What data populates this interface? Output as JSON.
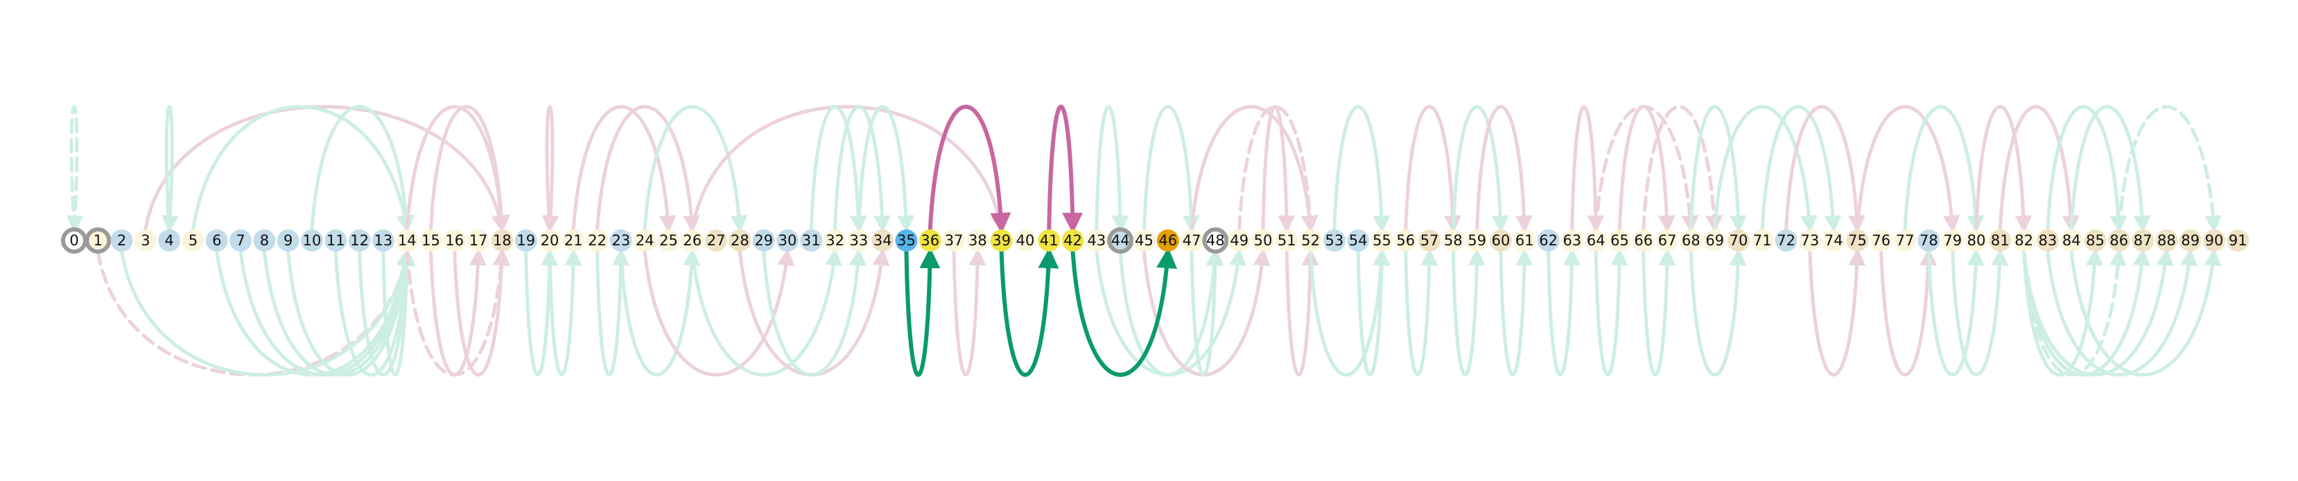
{
  "nodes": [
    {
      "label": "0",
      "style": "ring"
    },
    {
      "label": "1",
      "style": "ring-cream"
    },
    {
      "label": "2",
      "style": "blue"
    },
    {
      "label": "3",
      "style": "cream"
    },
    {
      "label": "4",
      "style": "blue"
    },
    {
      "label": "5",
      "style": "cream"
    },
    {
      "label": "6",
      "style": "blue"
    },
    {
      "label": "7",
      "style": "blue"
    },
    {
      "label": "8",
      "style": "blue"
    },
    {
      "label": "9",
      "style": "blue"
    },
    {
      "label": "10",
      "style": "blue"
    },
    {
      "label": "11",
      "style": "blue"
    },
    {
      "label": "12",
      "style": "blue"
    },
    {
      "label": "13",
      "style": "blue"
    },
    {
      "label": "14",
      "style": "cream"
    },
    {
      "label": "15",
      "style": "cream"
    },
    {
      "label": "16",
      "style": "cream"
    },
    {
      "label": "17",
      "style": "cream"
    },
    {
      "label": "18",
      "style": "tan"
    },
    {
      "label": "19",
      "style": "blue"
    },
    {
      "label": "20",
      "style": "cream"
    },
    {
      "label": "21",
      "style": "cream"
    },
    {
      "label": "22",
      "style": "cream"
    },
    {
      "label": "23",
      "style": "blue"
    },
    {
      "label": "24",
      "style": "cream"
    },
    {
      "label": "25",
      "style": "cream"
    },
    {
      "label": "26",
      "style": "cream"
    },
    {
      "label": "27",
      "style": "tan"
    },
    {
      "label": "28",
      "style": "tan"
    },
    {
      "label": "29",
      "style": "blue"
    },
    {
      "label": "30",
      "style": "blue"
    },
    {
      "label": "31",
      "style": "blue"
    },
    {
      "label": "32",
      "style": "cream"
    },
    {
      "label": "33",
      "style": "cream"
    },
    {
      "label": "34",
      "style": "tan"
    },
    {
      "label": "35",
      "style": "sky"
    },
    {
      "label": "36",
      "style": "yellow"
    },
    {
      "label": "37",
      "style": "cream"
    },
    {
      "label": "38",
      "style": "cream"
    },
    {
      "label": "39",
      "style": "yellow"
    },
    {
      "label": "40",
      "style": "cream"
    },
    {
      "label": "41",
      "style": "yellow"
    },
    {
      "label": "42",
      "style": "yellow"
    },
    {
      "label": "43",
      "style": "cream"
    },
    {
      "label": "44",
      "style": "ring-blue"
    },
    {
      "label": "45",
      "style": "cream"
    },
    {
      "label": "46",
      "style": "orange"
    },
    {
      "label": "47",
      "style": "cream"
    },
    {
      "label": "48",
      "style": "ring"
    },
    {
      "label": "49",
      "style": "cream"
    },
    {
      "label": "50",
      "style": "cream"
    },
    {
      "label": "51",
      "style": "cream"
    },
    {
      "label": "52",
      "style": "cream"
    },
    {
      "label": "53",
      "style": "blue"
    },
    {
      "label": "54",
      "style": "blue"
    },
    {
      "label": "55",
      "style": "cream"
    },
    {
      "label": "56",
      "style": "cream"
    },
    {
      "label": "57",
      "style": "tan"
    },
    {
      "label": "58",
      "style": "cream"
    },
    {
      "label": "59",
      "style": "cream"
    },
    {
      "label": "60",
      "style": "tan"
    },
    {
      "label": "61",
      "style": "cream"
    },
    {
      "label": "62",
      "style": "blue"
    },
    {
      "label": "63",
      "style": "cream"
    },
    {
      "label": "64",
      "style": "cream"
    },
    {
      "label": "65",
      "style": "cream"
    },
    {
      "label": "66",
      "style": "cream"
    },
    {
      "label": "67",
      "style": "cream"
    },
    {
      "label": "68",
      "style": "cream"
    },
    {
      "label": "69",
      "style": "cream"
    },
    {
      "label": "70",
      "style": "tan"
    },
    {
      "label": "71",
      "style": "cream"
    },
    {
      "label": "72",
      "style": "blue"
    },
    {
      "label": "73",
      "style": "cream"
    },
    {
      "label": "74",
      "style": "cream"
    },
    {
      "label": "75",
      "style": "tan"
    },
    {
      "label": "76",
      "style": "cream"
    },
    {
      "label": "77",
      "style": "cream"
    },
    {
      "label": "78",
      "style": "blue"
    },
    {
      "label": "79",
      "style": "cream"
    },
    {
      "label": "80",
      "style": "cream"
    },
    {
      "label": "81",
      "style": "tan"
    },
    {
      "label": "82",
      "style": "cream"
    },
    {
      "label": "83",
      "style": "tan"
    },
    {
      "label": "84",
      "style": "cream"
    },
    {
      "label": "85",
      "style": "tan"
    },
    {
      "label": "86",
      "style": "tan"
    },
    {
      "label": "87",
      "style": "tan"
    },
    {
      "label": "88",
      "style": "tan"
    },
    {
      "label": "89",
      "style": "tan"
    },
    {
      "label": "90",
      "style": "tan"
    },
    {
      "label": "91",
      "style": "tan"
    }
  ],
  "highlighted_edges": [
    {
      "from": 36,
      "to": 39,
      "side": "above",
      "color": "#c8679f",
      "kind": "solid"
    },
    {
      "from": 41,
      "to": 42,
      "side": "above",
      "color": "#c8679f",
      "kind": "solid"
    },
    {
      "from": 35,
      "to": 36,
      "side": "below",
      "color": "#0a9a6e",
      "kind": "solid"
    },
    {
      "from": 39,
      "to": 41,
      "side": "below",
      "color": "#0a9a6e",
      "kind": "solid"
    },
    {
      "from": 42,
      "to": 46,
      "side": "below",
      "color": "#0a9a6e",
      "kind": "solid"
    }
  ],
  "background_edges": [
    {
      "from": 0,
      "to": 0,
      "side": "above",
      "color": "#cdeee3",
      "kind": "dashed"
    },
    {
      "from": 3,
      "to": 18,
      "side": "above",
      "color": "#ecd2dd",
      "kind": "solid"
    },
    {
      "from": 4,
      "to": 4,
      "side": "above",
      "color": "#cdeee3",
      "kind": "solid"
    },
    {
      "from": 5,
      "to": 14,
      "side": "above",
      "color": "#cdeee3",
      "kind": "solid"
    },
    {
      "from": 10,
      "to": 14,
      "side": "above",
      "color": "#cdeee3",
      "kind": "solid"
    },
    {
      "from": 14,
      "to": 18,
      "side": "above",
      "color": "#ecd2dd",
      "kind": "solid"
    },
    {
      "from": 15,
      "to": 18,
      "side": "above",
      "color": "#ecd2dd",
      "kind": "solid"
    },
    {
      "from": 20,
      "to": 20,
      "side": "above",
      "color": "#ecd2dd",
      "kind": "solid"
    },
    {
      "from": 21,
      "to": 25,
      "side": "above",
      "color": "#ecd2dd",
      "kind": "solid"
    },
    {
      "from": 22,
      "to": 26,
      "side": "above",
      "color": "#ecd2dd",
      "kind": "solid"
    },
    {
      "from": 24,
      "to": 28,
      "side": "above",
      "color": "#cdeee3",
      "kind": "solid"
    },
    {
      "from": 26,
      "to": 39,
      "side": "above",
      "color": "#ecd2dd",
      "kind": "solid"
    },
    {
      "from": 31,
      "to": 33,
      "side": "above",
      "color": "#cdeee3",
      "kind": "solid"
    },
    {
      "from": 32,
      "to": 34,
      "side": "above",
      "color": "#cdeee3",
      "kind": "solid"
    },
    {
      "from": 33,
      "to": 35,
      "side": "above",
      "color": "#cdeee3",
      "kind": "solid"
    },
    {
      "from": 43,
      "to": 44,
      "side": "above",
      "color": "#cdeee3",
      "kind": "solid"
    },
    {
      "from": 45,
      "to": 47,
      "side": "above",
      "color": "#cdeee3",
      "kind": "solid"
    },
    {
      "from": 47,
      "to": 52,
      "side": "above",
      "color": "#ecd2dd",
      "kind": "solid"
    },
    {
      "from": 49,
      "to": 52,
      "side": "above",
      "color": "#ecd2dd",
      "kind": "dashed"
    },
    {
      "from": 50,
      "to": 51,
      "side": "above",
      "color": "#ecd2dd",
      "kind": "solid"
    },
    {
      "from": 53,
      "to": 55,
      "side": "above",
      "color": "#cdeee3",
      "kind": "solid"
    },
    {
      "from": 56,
      "to": 58,
      "side": "above",
      "color": "#ecd2dd",
      "kind": "solid"
    },
    {
      "from": 58,
      "to": 60,
      "side": "above",
      "color": "#cdeee3",
      "kind": "solid"
    },
    {
      "from": 59,
      "to": 61,
      "side": "above",
      "color": "#ecd2dd",
      "kind": "solid"
    },
    {
      "from": 63,
      "to": 64,
      "side": "above",
      "color": "#ecd2dd",
      "kind": "solid"
    },
    {
      "from": 64,
      "to": 68,
      "side": "above",
      "color": "#ecd2dd",
      "kind": "dashed"
    },
    {
      "from": 65,
      "to": 67,
      "side": "above",
      "color": "#ecd2dd",
      "kind": "solid"
    },
    {
      "from": 66,
      "to": 69,
      "side": "above",
      "color": "#ecd2dd",
      "kind": "dashed"
    },
    {
      "from": 68,
      "to": 70,
      "side": "above",
      "color": "#cdeee3",
      "kind": "solid"
    },
    {
      "from": 69,
      "to": 73,
      "side": "above",
      "color": "#cdeee3",
      "kind": "solid"
    },
    {
      "from": 71,
      "to": 74,
      "side": "above",
      "color": "#cdeee3",
      "kind": "solid"
    },
    {
      "from": 72,
      "to": 75,
      "side": "above",
      "color": "#ecd2dd",
      "kind": "solid"
    },
    {
      "from": 75,
      "to": 79,
      "side": "above",
      "color": "#ecd2dd",
      "kind": "solid"
    },
    {
      "from": 77,
      "to": 80,
      "side": "above",
      "color": "#cdeee3",
      "kind": "solid"
    },
    {
      "from": 80,
      "to": 82,
      "side": "above",
      "color": "#ecd2dd",
      "kind": "solid"
    },
    {
      "from": 81,
      "to": 84,
      "side": "above",
      "color": "#ecd2dd",
      "kind": "solid"
    },
    {
      "from": 83,
      "to": 86,
      "side": "above",
      "color": "#cdeee3",
      "kind": "solid"
    },
    {
      "from": 84,
      "to": 87,
      "side": "above",
      "color": "#cdeee3",
      "kind": "solid"
    },
    {
      "from": 86,
      "to": 90,
      "side": "above",
      "color": "#cdeee3",
      "kind": "dashed"
    },
    {
      "from": 1,
      "to": 14,
      "side": "below",
      "color": "#ecd2dd",
      "kind": "dashed"
    },
    {
      "from": 2,
      "to": 14,
      "side": "below",
      "color": "#cdeee3",
      "kind": "solid"
    },
    {
      "from": 6,
      "to": 14,
      "side": "below",
      "color": "#cdeee3",
      "kind": "solid"
    },
    {
      "from": 7,
      "to": 14,
      "side": "below",
      "color": "#cdeee3",
      "kind": "solid"
    },
    {
      "from": 8,
      "to": 14,
      "side": "below",
      "color": "#cdeee3",
      "kind": "solid"
    },
    {
      "from": 9,
      "to": 14,
      "side": "below",
      "color": "#cdeee3",
      "kind": "solid"
    },
    {
      "from": 11,
      "to": 14,
      "side": "below",
      "color": "#cdeee3",
      "kind": "solid"
    },
    {
      "from": 12,
      "to": 14,
      "side": "below",
      "color": "#cdeee3",
      "kind": "solid"
    },
    {
      "from": 13,
      "to": 14,
      "side": "below",
      "color": "#cdeee3",
      "kind": "solid"
    },
    {
      "from": 14,
      "to": 18,
      "side": "below",
      "color": "#ecd2dd",
      "kind": "dashed"
    },
    {
      "from": 15,
      "to": 17,
      "side": "below",
      "color": "#ecd2dd",
      "kind": "solid"
    },
    {
      "from": 16,
      "to": 18,
      "side": "below",
      "color": "#ecd2dd",
      "kind": "solid"
    },
    {
      "from": 19,
      "to": 20,
      "side": "below",
      "color": "#cdeee3",
      "kind": "solid"
    },
    {
      "from": 20,
      "to": 21,
      "side": "below",
      "color": "#cdeee3",
      "kind": "solid"
    },
    {
      "from": 22,
      "to": 23,
      "side": "below",
      "color": "#cdeee3",
      "kind": "solid"
    },
    {
      "from": 23,
      "to": 26,
      "side": "below",
      "color": "#cdeee3",
      "kind": "solid"
    },
    {
      "from": 24,
      "to": 30,
      "side": "below",
      "color": "#ecd2dd",
      "kind": "solid"
    },
    {
      "from": 26,
      "to": 32,
      "side": "below",
      "color": "#cdeee3",
      "kind": "solid"
    },
    {
      "from": 28,
      "to": 34,
      "side": "below",
      "color": "#ecd2dd",
      "kind": "solid"
    },
    {
      "from": 29,
      "to": 33,
      "side": "below",
      "color": "#cdeee3",
      "kind": "solid"
    },
    {
      "from": 37,
      "to": 38,
      "side": "below",
      "color": "#ecd2dd",
      "kind": "solid"
    },
    {
      "from": 43,
      "to": 49,
      "side": "below",
      "color": "#cdeee3",
      "kind": "solid"
    },
    {
      "from": 44,
      "to": 48,
      "side": "below",
      "color": "#cdeee3",
      "kind": "solid"
    },
    {
      "from": 45,
      "to": 50,
      "side": "below",
      "color": "#ecd2dd",
      "kind": "solid"
    },
    {
      "from": 47,
      "to": 48,
      "side": "below",
      "color": "#cdeee3",
      "kind": "solid"
    },
    {
      "from": 51,
      "to": 52,
      "side": "below",
      "color": "#ecd2dd",
      "kind": "solid"
    },
    {
      "from": 52,
      "to": 55,
      "side": "below",
      "color": "#cdeee3",
      "kind": "solid"
    },
    {
      "from": 54,
      "to": 55,
      "side": "below",
      "color": "#cdeee3",
      "kind": "solid"
    },
    {
      "from": 56,
      "to": 57,
      "side": "below",
      "color": "#cdeee3",
      "kind": "solid"
    },
    {
      "from": 58,
      "to": 59,
      "side": "below",
      "color": "#cdeee3",
      "kind": "solid"
    },
    {
      "from": 60,
      "to": 61,
      "side": "below",
      "color": "#cdeee3",
      "kind": "solid"
    },
    {
      "from": 62,
      "to": 63,
      "side": "below",
      "color": "#cdeee3",
      "kind": "solid"
    },
    {
      "from": 64,
      "to": 65,
      "side": "below",
      "color": "#cdeee3",
      "kind": "solid"
    },
    {
      "from": 66,
      "to": 67,
      "side": "below",
      "color": "#cdeee3",
      "kind": "solid"
    },
    {
      "from": 68,
      "to": 70,
      "side": "below",
      "color": "#cdeee3",
      "kind": "solid"
    },
    {
      "from": 73,
      "to": 75,
      "side": "below",
      "color": "#ecd2dd",
      "kind": "solid"
    },
    {
      "from": 76,
      "to": 78,
      "side": "below",
      "color": "#ecd2dd",
      "kind": "solid"
    },
    {
      "from": 78,
      "to": 80,
      "side": "below",
      "color": "#cdeee3",
      "kind": "solid"
    },
    {
      "from": 79,
      "to": 81,
      "side": "below",
      "color": "#cdeee3",
      "kind": "solid"
    },
    {
      "from": 82,
      "to": 85,
      "side": "below",
      "color": "#cdeee3",
      "kind": "solid"
    },
    {
      "from": 82,
      "to": 86,
      "side": "below",
      "color": "#cdeee3",
      "kind": "dashed"
    },
    {
      "from": 82,
      "to": 87,
      "side": "below",
      "color": "#cdeee3",
      "kind": "solid"
    },
    {
      "from": 82,
      "to": 88,
      "side": "below",
      "color": "#cdeee3",
      "kind": "solid"
    },
    {
      "from": 83,
      "to": 89,
      "side": "below",
      "color": "#cdeee3",
      "kind": "solid"
    },
    {
      "from": 84,
      "to": 90,
      "side": "below",
      "color": "#cdeee3",
      "kind": "solid"
    }
  ],
  "colors": {
    "ring": "#9a9a9a",
    "cream": "#fbf5dc",
    "tan": "#efe2c4",
    "blue": "#c3dcea",
    "sky": "#56b4e9",
    "yellow": "#f0e442",
    "orange": "#e69f00"
  }
}
